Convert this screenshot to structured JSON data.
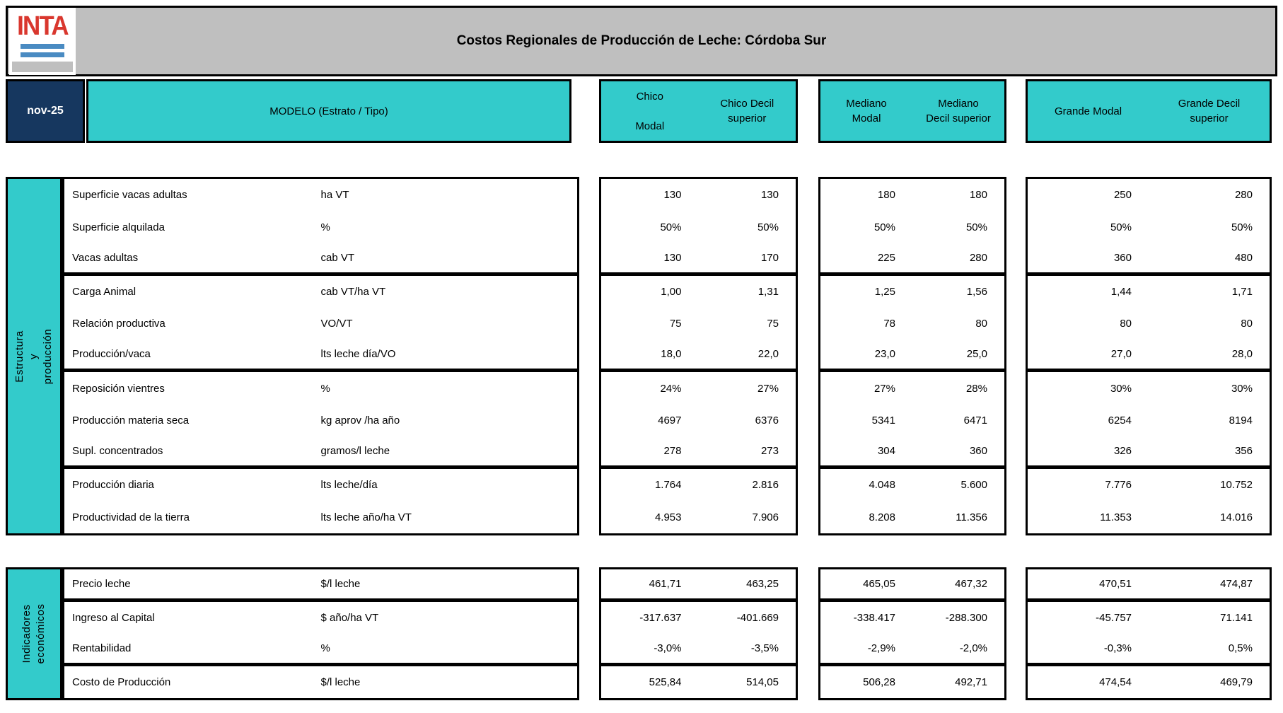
{
  "colors": {
    "teal": "#33CBCB",
    "navy": "#16375F",
    "band_gray": "#BFBFBF",
    "logo_red": "#D9372E",
    "logo_blue": "#4A8BC2"
  },
  "logo": {
    "text": "INTA"
  },
  "header": {
    "title": "Costos Regionales de Producción de Leche: Córdoba Sur",
    "date": "nov-25",
    "model_label": "MODELO (Estrato / Tipo)",
    "columns": [
      [
        "Chico",
        "",
        "Modal"
      ],
      [
        "Chico Decil",
        "superior"
      ],
      [
        "Mediano",
        "Modal"
      ],
      [
        "Mediano",
        "Decil superior"
      ],
      [
        "Grande Modal"
      ],
      [
        "Grande Decil",
        "superior"
      ]
    ]
  },
  "sections": [
    {
      "name": [
        "Estructura y producción"
      ],
      "rows": [
        {
          "label": "Superficie vacas adultas",
          "unit": "ha VT",
          "v": [
            "130",
            "130",
            "180",
            "180",
            "250",
            "280"
          ]
        },
        {
          "label": "Superficie alquilada",
          "unit": "%",
          "v": [
            "50%",
            "50%",
            "50%",
            "50%",
            "50%",
            "50%"
          ]
        },
        {
          "label": "Vacas adultas",
          "unit": "cab VT",
          "v": [
            "130",
            "170",
            "225",
            "280",
            "360",
            "480"
          ]
        },
        {
          "label": "Carga Animal",
          "unit": "cab VT/ha VT",
          "v": [
            "1,00",
            "1,31",
            "1,25",
            "1,56",
            "1,44",
            "1,71"
          ]
        },
        {
          "label": "Relación productiva",
          "unit": "VO/VT",
          "v": [
            "75",
            "75",
            "78",
            "80",
            "80",
            "80"
          ]
        },
        {
          "label": "Producción/vaca",
          "unit": "lts leche día/VO",
          "v": [
            "18,0",
            "22,0",
            "23,0",
            "25,0",
            "27,0",
            "28,0"
          ]
        },
        {
          "label": "Reposición vientres",
          "unit": "%",
          "v": [
            "24%",
            "27%",
            "27%",
            "28%",
            "30%",
            "30%"
          ]
        },
        {
          "label": "Producción materia seca",
          "unit": "kg aprov /ha año",
          "v": [
            "4697",
            "6376",
            "5341",
            "6471",
            "6254",
            "8194"
          ]
        },
        {
          "label": "Supl. concentrados",
          "unit": "gramos/l leche",
          "v": [
            "278",
            "273",
            "304",
            "360",
            "326",
            "356"
          ]
        },
        {
          "label": "Producción diaria",
          "unit": "lts leche/día",
          "v": [
            "1.764",
            "2.816",
            "4.048",
            "5.600",
            "7.776",
            "10.752"
          ]
        },
        {
          "label": "Productividad de la tierra",
          "unit": "lts leche año/ha VT",
          "v": [
            "4.953",
            "7.906",
            "8.208",
            "11.356",
            "11.353",
            "14.016"
          ]
        }
      ]
    },
    {
      "name": [
        "Indicadores",
        "económicos"
      ],
      "rows": [
        {
          "label": "Precio leche",
          "unit": "$/l leche",
          "v": [
            "461,71",
            "463,25",
            "465,05",
            "467,32",
            "470,51",
            "474,87"
          ]
        },
        {
          "label": "Ingreso al Capital",
          "unit": "$ año/ha VT",
          "v": [
            "-317.637",
            "-401.669",
            "-338.417",
            "-288.300",
            "-45.757",
            "71.141"
          ]
        },
        {
          "label": "Rentabilidad",
          "unit": "%",
          "v": [
            "-3,0%",
            "-3,5%",
            "-2,9%",
            "-2,0%",
            "-0,3%",
            "0,5%"
          ]
        },
        {
          "label": "Costo de Producción",
          "unit": "$/l leche",
          "v": [
            "525,84",
            "514,05",
            "506,28",
            "492,71",
            "474,54",
            "469,79"
          ]
        }
      ]
    }
  ]
}
